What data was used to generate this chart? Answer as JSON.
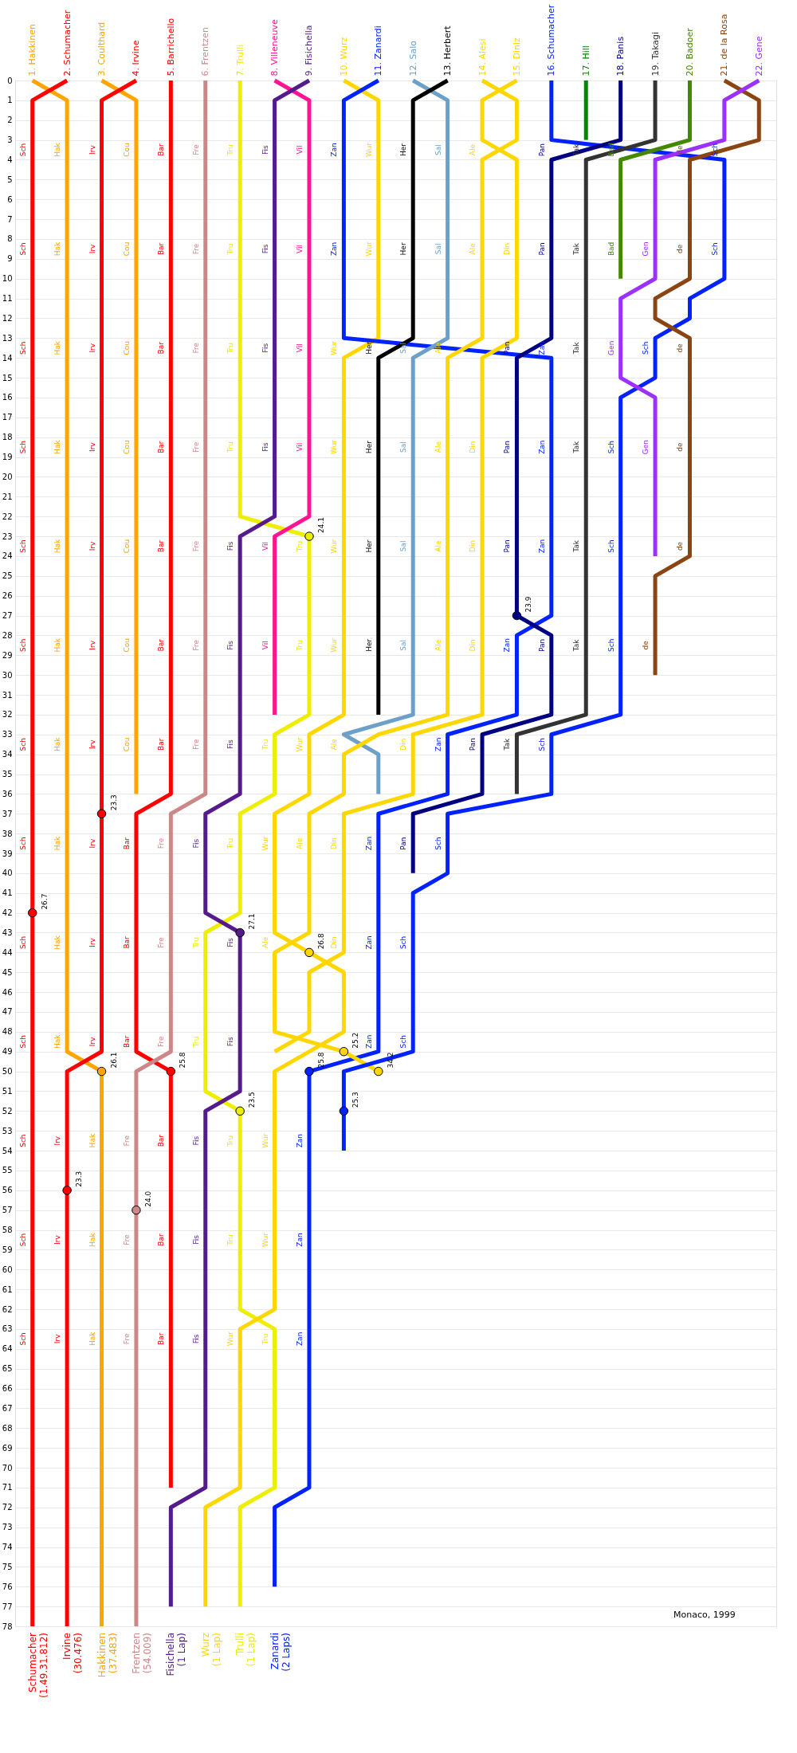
{
  "chart_data": {
    "type": "line",
    "xlim": [
      0.5,
      22.5
    ],
    "ylim": [
      78,
      0
    ],
    "grid": "y",
    "subtitle": "Monaco, 1999",
    "yticks": [
      0,
      1,
      2,
      3,
      4,
      5,
      6,
      7,
      8,
      9,
      10,
      11,
      12,
      13,
      14,
      15,
      16,
      17,
      18,
      19,
      20,
      21,
      22,
      23,
      24,
      25,
      26,
      27,
      28,
      29,
      30,
      31,
      32,
      33,
      34,
      35,
      36,
      37,
      38,
      39,
      40,
      41,
      42,
      43,
      44,
      45,
      46,
      47,
      48,
      49,
      50,
      51,
      52,
      53,
      54,
      55,
      56,
      57,
      58,
      59,
      60,
      61,
      62,
      63,
      64,
      65,
      66,
      67,
      68,
      69,
      70,
      71,
      72,
      73,
      74,
      75,
      76,
      77,
      78
    ],
    "xticks": [
      {
        "value": 1,
        "label": "1. Hakkinen"
      },
      {
        "value": 2,
        "label": "2. Schumacher"
      },
      {
        "value": 3,
        "label": "3. Coulthard"
      },
      {
        "value": 4,
        "label": "4. Irvine"
      },
      {
        "value": 5,
        "label": "5. Barrichello"
      },
      {
        "value": 6,
        "label": "6. Frentzen"
      },
      {
        "value": 7,
        "label": "7. Trulli"
      },
      {
        "value": 8,
        "label": "8. Villeneuve"
      },
      {
        "value": 9,
        "label": "9. Fisichella"
      },
      {
        "value": 10,
        "label": "10. Wurz"
      },
      {
        "value": 11,
        "label": "11. Zanardi"
      },
      {
        "value": 12,
        "label": "12. Salo"
      },
      {
        "value": 13,
        "label": "13. Herbert"
      },
      {
        "value": 14,
        "label": "14. Alesi"
      },
      {
        "value": 15,
        "label": "15. Diniz"
      },
      {
        "value": 16,
        "label": "16. Schumacher"
      },
      {
        "value": 17,
        "label": "17. Hill"
      },
      {
        "value": 18,
        "label": "18. Panis"
      },
      {
        "value": 19,
        "label": "19. Takagi"
      },
      {
        "value": 20,
        "label": "20. Badoer"
      },
      {
        "value": 21,
        "label": "21. de la Rosa"
      },
      {
        "value": 22,
        "label": "22. Gene"
      }
    ],
    "series": [
      {
        "color": "#ffa500",
        "x": [
          1,
          2,
          2,
          3,
          3
        ],
        "values": [
          0,
          1,
          49,
          50,
          78
        ]
      },
      {
        "color": "#ff0000",
        "x": [
          2,
          1,
          1
        ],
        "values": [
          0,
          1,
          78
        ]
      },
      {
        "color": "#ffa500",
        "x": [
          3,
          4,
          4
        ],
        "values": [
          0,
          1,
          36
        ]
      },
      {
        "color": "#ff0000",
        "x": [
          4,
          3,
          3,
          2,
          2
        ],
        "values": [
          0,
          1,
          49,
          50,
          78
        ]
      },
      {
        "color": "#ff0000",
        "x": [
          5,
          5,
          4,
          4,
          5,
          5
        ],
        "values": [
          0,
          36,
          37,
          49,
          50,
          71
        ]
      },
      {
        "color": "#cc8888",
        "x": [
          6,
          6,
          5,
          5,
          4,
          4
        ],
        "values": [
          0,
          36,
          37,
          49,
          50,
          78
        ]
      },
      {
        "color": "#eeee00",
        "x": [
          7,
          7,
          9,
          9,
          8,
          8,
          7,
          7,
          6,
          6,
          7,
          7,
          8,
          8,
          7,
          7
        ],
        "values": [
          0,
          22,
          23,
          32,
          33,
          36,
          37,
          42,
          43,
          51,
          52,
          62,
          63,
          71,
          72,
          77
        ]
      },
      {
        "color": "#ff1493",
        "x": [
          8,
          9,
          9,
          8,
          8
        ],
        "values": [
          0,
          1,
          22,
          23,
          32
        ]
      },
      {
        "color": "#551a8b",
        "x": [
          9,
          8,
          8,
          7,
          7,
          6,
          6,
          7,
          7,
          6,
          6,
          5,
          5
        ],
        "values": [
          0,
          1,
          22,
          23,
          36,
          37,
          42,
          43,
          51,
          52,
          71,
          72,
          77
        ]
      },
      {
        "color": "#ffd700",
        "x": [
          10,
          11,
          11,
          10,
          10,
          9,
          9,
          8,
          8,
          9,
          10,
          10,
          8,
          8,
          7,
          7,
          6,
          6
        ],
        "values": [
          0,
          1,
          13,
          14,
          32,
          33,
          36,
          37,
          43,
          44,
          45,
          48,
          50,
          62,
          63,
          71,
          72,
          77
        ]
      },
      {
        "color": "#0022ff",
        "x": [
          11,
          10,
          10,
          16,
          16,
          15,
          15,
          13,
          13,
          11,
          11,
          9,
          9,
          8,
          8
        ],
        "values": [
          0,
          1,
          13,
          14,
          27,
          28,
          32,
          33,
          36,
          37,
          49,
          50,
          71,
          72,
          76
        ]
      },
      {
        "color": "#6ca0c8",
        "x": [
          12,
          13,
          13,
          12,
          12,
          10,
          11,
          11
        ],
        "values": [
          0,
          1,
          13,
          14,
          32,
          33,
          34,
          36
        ]
      },
      {
        "color": "#000000",
        "x": [
          13,
          12,
          12,
          11,
          11
        ],
        "values": [
          0,
          1,
          13,
          14,
          32
        ]
      },
      {
        "color": "#ffd700",
        "x": [
          14,
          15,
          15,
          14,
          14,
          13,
          13,
          11,
          10,
          10,
          9,
          9,
          8,
          8,
          10,
          11
        ],
        "values": [
          0,
          1,
          3,
          4,
          13,
          14,
          32,
          33,
          34,
          36,
          37,
          43,
          44,
          48,
          49,
          50
        ]
      },
      {
        "color": "#ffd700",
        "x": [
          15,
          14,
          14,
          15,
          15,
          14,
          14,
          12,
          12,
          10,
          10,
          9,
          9,
          8
        ],
        "values": [
          0,
          1,
          3,
          4,
          13,
          14,
          32,
          33,
          36,
          37,
          44,
          45,
          48,
          49
        ]
      },
      {
        "color": "#0022ff",
        "x": [
          16,
          16,
          21,
          21,
          20,
          20,
          19,
          19,
          18,
          18,
          16,
          16,
          13,
          13,
          12,
          12,
          10,
          10
        ],
        "values": [
          0,
          3,
          4,
          10,
          11,
          12,
          13,
          15,
          16,
          32,
          33,
          36,
          37,
          40,
          41,
          49,
          50,
          54
        ]
      },
      {
        "color": "#008800",
        "x": [
          17,
          17
        ],
        "values": [
          0,
          3
        ]
      },
      {
        "color": "#000080",
        "x": [
          18,
          18,
          16,
          16,
          15,
          15,
          16,
          16,
          14,
          14,
          12,
          12
        ],
        "values": [
          0,
          3,
          4,
          13,
          14,
          27,
          28,
          32,
          33,
          36,
          37,
          40
        ]
      },
      {
        "color": "#333333",
        "x": [
          19,
          19,
          17,
          17,
          15,
          15
        ],
        "values": [
          0,
          3,
          4,
          32,
          33,
          36
        ]
      },
      {
        "color": "#448800",
        "x": [
          20,
          20,
          18,
          18
        ],
        "values": [
          0,
          3,
          4,
          10
        ]
      },
      {
        "color": "#8b4513",
        "x": [
          21,
          22,
          22,
          20,
          20,
          19,
          19,
          20,
          20,
          19,
          19
        ],
        "values": [
          0,
          1,
          3,
          4,
          10,
          11,
          12,
          13,
          24,
          25,
          30
        ]
      },
      {
        "color": "#9b30ff",
        "x": [
          22,
          21,
          21,
          19,
          19,
          18,
          18,
          19,
          19
        ],
        "values": [
          0,
          1,
          3,
          4,
          10,
          11,
          15,
          16,
          24
        ]
      },
      {
        "type": "scatter",
        "marker": "circle",
        "x": [
          1,
          3,
          2,
          3,
          5,
          4,
          9,
          7,
          7,
          9,
          10,
          11,
          9,
          10,
          15
        ],
        "values": [
          42,
          37,
          56,
          50,
          50,
          57,
          23,
          52,
          43,
          44,
          49,
          50,
          50,
          52,
          27
        ],
        "colors": [
          "#ff0000",
          "#ff0000",
          "#ff0000",
          "#ffa500",
          "#ff0000",
          "#cc8888",
          "#eeee00",
          "#eeee00",
          "#551a8b",
          "#ffd700",
          "#ffd700",
          "#ffd700",
          "#0022ff",
          "#0022ff",
          "#000080"
        ]
      }
    ],
    "annotations": [
      {
        "text": "26.7",
        "x": 1,
        "y": 42
      },
      {
        "text": "23.3",
        "x": 3,
        "y": 37
      },
      {
        "text": "23.3",
        "x": 2,
        "y": 56
      },
      {
        "text": "26.1",
        "x": 3,
        "y": 50
      },
      {
        "text": "25.8",
        "x": 5,
        "y": 50
      },
      {
        "text": "24.0",
        "x": 4,
        "y": 57
      },
      {
        "text": "24.1",
        "x": 9,
        "y": 23
      },
      {
        "text": "23.5",
        "x": 7,
        "y": 52
      },
      {
        "text": "27.1",
        "x": 7,
        "y": 43
      },
      {
        "text": "26.8",
        "x": 9,
        "y": 44
      },
      {
        "text": "25.2",
        "x": 10,
        "y": 49
      },
      {
        "text": "34.2",
        "x": 11,
        "y": 50
      },
      {
        "text": "25.8",
        "x": 9,
        "y": 50
      },
      {
        "text": "25.3",
        "x": 10,
        "y": 52
      },
      {
        "text": "23.9",
        "x": 15,
        "y": 27
      },
      {
        "text": "Sch",
        "x": 1,
        "y": 4
      },
      {
        "text": "Hak",
        "x": 2,
        "y": 4
      },
      {
        "text": "Irv",
        "x": 3,
        "y": 4
      },
      {
        "text": "Cou",
        "x": 4,
        "y": 4
      },
      {
        "text": "Bar",
        "x": 5,
        "y": 4
      },
      {
        "text": "Fre",
        "x": 6,
        "y": 4
      },
      {
        "text": "Tru",
        "x": 7,
        "y": 4
      },
      {
        "text": "Fis",
        "x": 8,
        "y": 4
      },
      {
        "text": "Vil",
        "x": 9,
        "y": 4
      },
      {
        "text": "Zan",
        "x": 10,
        "y": 4
      },
      {
        "text": "Wur",
        "x": 11,
        "y": 4
      },
      {
        "text": "Her",
        "x": 12,
        "y": 4
      },
      {
        "text": "Sal",
        "x": 13,
        "y": 4
      },
      {
        "text": "Ale",
        "x": 14,
        "y": 4
      },
      {
        "text": "Pan",
        "x": 16,
        "y": 4
      },
      {
        "text": "Tak",
        "x": 17,
        "y": 4
      },
      {
        "text": "Bad",
        "x": 18,
        "y": 4
      },
      {
        "text": "de",
        "x": 20,
        "y": 4
      },
      {
        "text": "Sch",
        "x": 21,
        "y": 4
      },
      {
        "text": "Sch",
        "x": 1,
        "y": 9
      },
      {
        "text": "Hak",
        "x": 2,
        "y": 9
      },
      {
        "text": "Irv",
        "x": 3,
        "y": 9
      },
      {
        "text": "Cou",
        "x": 4,
        "y": 9
      },
      {
        "text": "Bar",
        "x": 5,
        "y": 9
      },
      {
        "text": "Fre",
        "x": 6,
        "y": 9
      },
      {
        "text": "Tru",
        "x": 7,
        "y": 9
      },
      {
        "text": "Fis",
        "x": 8,
        "y": 9
      },
      {
        "text": "Vil",
        "x": 9,
        "y": 9
      },
      {
        "text": "Zan",
        "x": 10,
        "y": 9
      },
      {
        "text": "Wur",
        "x": 11,
        "y": 9
      },
      {
        "text": "Her",
        "x": 12,
        "y": 9
      },
      {
        "text": "Sal",
        "x": 13,
        "y": 9
      },
      {
        "text": "Ale",
        "x": 14,
        "y": 9
      },
      {
        "text": "Din",
        "x": 15,
        "y": 9
      },
      {
        "text": "Pan",
        "x": 16,
        "y": 9
      },
      {
        "text": "Tak",
        "x": 17,
        "y": 9
      },
      {
        "text": "Bad",
        "x": 18,
        "y": 9
      },
      {
        "text": "Gen",
        "x": 19,
        "y": 9
      },
      {
        "text": "de",
        "x": 20,
        "y": 9
      },
      {
        "text": "Sch",
        "x": 21,
        "y": 9
      },
      {
        "text": "Sch",
        "x": 1,
        "y": 14
      },
      {
        "text": "Hak",
        "x": 2,
        "y": 14
      },
      {
        "text": "Irv",
        "x": 3,
        "y": 14
      },
      {
        "text": "Cou",
        "x": 4,
        "y": 14
      },
      {
        "text": "Bar",
        "x": 5,
        "y": 14
      },
      {
        "text": "Fre",
        "x": 6,
        "y": 14
      },
      {
        "text": "Tru",
        "x": 7,
        "y": 14
      },
      {
        "text": "Fis",
        "x": 8,
        "y": 14
      },
      {
        "text": "Vil",
        "x": 9,
        "y": 14
      },
      {
        "text": "Wur",
        "x": 10,
        "y": 14
      },
      {
        "text": "Her",
        "x": 11,
        "y": 14
      },
      {
        "text": "Sal",
        "x": 12,
        "y": 14
      },
      {
        "text": "Ale",
        "x": 13,
        "y": 14
      },
      {
        "text": "Pan",
        "x": 15,
        "y": 14
      },
      {
        "text": "Zan",
        "x": 16,
        "y": 14
      },
      {
        "text": "Tak",
        "x": 17,
        "y": 14
      },
      {
        "text": "Gen",
        "x": 18,
        "y": 14
      },
      {
        "text": "Sch",
        "x": 19,
        "y": 14
      },
      {
        "text": "de",
        "x": 20,
        "y": 14
      },
      {
        "text": "Sch",
        "x": 1,
        "y": 19
      },
      {
        "text": "Hak",
        "x": 2,
        "y": 19
      },
      {
        "text": "Irv",
        "x": 3,
        "y": 19
      },
      {
        "text": "Cou",
        "x": 4,
        "y": 19
      },
      {
        "text": "Bar",
        "x": 5,
        "y": 19
      },
      {
        "text": "Fre",
        "x": 6,
        "y": 19
      },
      {
        "text": "Tru",
        "x": 7,
        "y": 19
      },
      {
        "text": "Fis",
        "x": 8,
        "y": 19
      },
      {
        "text": "Vil",
        "x": 9,
        "y": 19
      },
      {
        "text": "Wur",
        "x": 10,
        "y": 19
      },
      {
        "text": "Her",
        "x": 11,
        "y": 19
      },
      {
        "text": "Sal",
        "x": 12,
        "y": 19
      },
      {
        "text": "Ale",
        "x": 13,
        "y": 19
      },
      {
        "text": "Din",
        "x": 14,
        "y": 19
      },
      {
        "text": "Pan",
        "x": 15,
        "y": 19
      },
      {
        "text": "Zan",
        "x": 16,
        "y": 19
      },
      {
        "text": "Tak",
        "x": 17,
        "y": 19
      },
      {
        "text": "Sch",
        "x": 18,
        "y": 19
      },
      {
        "text": "Gen",
        "x": 19,
        "y": 19
      },
      {
        "text": "de",
        "x": 20,
        "y": 19
      },
      {
        "text": "Sch",
        "x": 1,
        "y": 24
      },
      {
        "text": "Hak",
        "x": 2,
        "y": 24
      },
      {
        "text": "Irv",
        "x": 3,
        "y": 24
      },
      {
        "text": "Cou",
        "x": 4,
        "y": 24
      },
      {
        "text": "Bar",
        "x": 5,
        "y": 24
      },
      {
        "text": "Fre",
        "x": 6,
        "y": 24
      },
      {
        "text": "Fis",
        "x": 7,
        "y": 24
      },
      {
        "text": "Vil",
        "x": 8,
        "y": 24
      },
      {
        "text": "Tru",
        "x": 9,
        "y": 24
      },
      {
        "text": "Wur",
        "x": 10,
        "y": 24
      },
      {
        "text": "Her",
        "x": 11,
        "y": 24
      },
      {
        "text": "Sal",
        "x": 12,
        "y": 24
      },
      {
        "text": "Ale",
        "x": 13,
        "y": 24
      },
      {
        "text": "Din",
        "x": 14,
        "y": 24
      },
      {
        "text": "Pan",
        "x": 15,
        "y": 24
      },
      {
        "text": "Zan",
        "x": 16,
        "y": 24
      },
      {
        "text": "Tak",
        "x": 17,
        "y": 24
      },
      {
        "text": "Sch",
        "x": 18,
        "y": 24
      },
      {
        "text": "de",
        "x": 20,
        "y": 24
      },
      {
        "text": "Sch",
        "x": 1,
        "y": 29
      },
      {
        "text": "Hak",
        "x": 2,
        "y": 29
      },
      {
        "text": "Irv",
        "x": 3,
        "y": 29
      },
      {
        "text": "Cou",
        "x": 4,
        "y": 29
      },
      {
        "text": "Bar",
        "x": 5,
        "y": 29
      },
      {
        "text": "Fre",
        "x": 6,
        "y": 29
      },
      {
        "text": "Fis",
        "x": 7,
        "y": 29
      },
      {
        "text": "Vil",
        "x": 8,
        "y": 29
      },
      {
        "text": "Tru",
        "x": 9,
        "y": 29
      },
      {
        "text": "Wur",
        "x": 10,
        "y": 29
      },
      {
        "text": "Her",
        "x": 11,
        "y": 29
      },
      {
        "text": "Sal",
        "x": 12,
        "y": 29
      },
      {
        "text": "Ale",
        "x": 13,
        "y": 29
      },
      {
        "text": "Din",
        "x": 14,
        "y": 29
      },
      {
        "text": "Zan",
        "x": 15,
        "y": 29
      },
      {
        "text": "Pan",
        "x": 16,
        "y": 29
      },
      {
        "text": "Tak",
        "x": 17,
        "y": 29
      },
      {
        "text": "Sch",
        "x": 18,
        "y": 29
      },
      {
        "text": "de",
        "x": 19,
        "y": 29
      },
      {
        "text": "Sch",
        "x": 1,
        "y": 34
      },
      {
        "text": "Hak",
        "x": 2,
        "y": 34
      },
      {
        "text": "Irv",
        "x": 3,
        "y": 34
      },
      {
        "text": "Cou",
        "x": 4,
        "y": 34
      },
      {
        "text": "Bar",
        "x": 5,
        "y": 34
      },
      {
        "text": "Fre",
        "x": 6,
        "y": 34
      },
      {
        "text": "Fis",
        "x": 7,
        "y": 34
      },
      {
        "text": "Tru",
        "x": 8,
        "y": 34
      },
      {
        "text": "Wur",
        "x": 9,
        "y": 34
      },
      {
        "text": "Ale",
        "x": 10,
        "y": 34
      },
      {
        "text": "Din",
        "x": 12,
        "y": 34
      },
      {
        "text": "Zan",
        "x": 13,
        "y": 34
      },
      {
        "text": "Pan",
        "x": 14,
        "y": 34
      },
      {
        "text": "Tak",
        "x": 15,
        "y": 34
      },
      {
        "text": "Sch",
        "x": 16,
        "y": 34
      },
      {
        "text": "Sch",
        "x": 1,
        "y": 39
      },
      {
        "text": "Hak",
        "x": 2,
        "y": 39
      },
      {
        "text": "Irv",
        "x": 3,
        "y": 39
      },
      {
        "text": "Bar",
        "x": 4,
        "y": 39
      },
      {
        "text": "Fre",
        "x": 5,
        "y": 39
      },
      {
        "text": "Fis",
        "x": 6,
        "y": 39
      },
      {
        "text": "Tru",
        "x": 7,
        "y": 39
      },
      {
        "text": "Wur",
        "x": 8,
        "y": 39
      },
      {
        "text": "Ale",
        "x": 9,
        "y": 39
      },
      {
        "text": "Din",
        "x": 10,
        "y": 39
      },
      {
        "text": "Zan",
        "x": 11,
        "y": 39
      },
      {
        "text": "Pan",
        "x": 12,
        "y": 39
      },
      {
        "text": "Sch",
        "x": 13,
        "y": 39
      },
      {
        "text": "Sch",
        "x": 1,
        "y": 44
      },
      {
        "text": "Hak",
        "x": 2,
        "y": 44
      },
      {
        "text": "Irv",
        "x": 3,
        "y": 44
      },
      {
        "text": "Bar",
        "x": 4,
        "y": 44
      },
      {
        "text": "Fre",
        "x": 5,
        "y": 44
      },
      {
        "text": "Tru",
        "x": 6,
        "y": 44
      },
      {
        "text": "Fis",
        "x": 7,
        "y": 44
      },
      {
        "text": "Ale",
        "x": 8,
        "y": 44
      },
      {
        "text": "Din",
        "x": 10,
        "y": 44
      },
      {
        "text": "Zan",
        "x": 11,
        "y": 44
      },
      {
        "text": "Sch",
        "x": 12,
        "y": 44
      },
      {
        "text": "Sch",
        "x": 1,
        "y": 49
      },
      {
        "text": "Hak",
        "x": 2,
        "y": 49
      },
      {
        "text": "Irv",
        "x": 3,
        "y": 49
      },
      {
        "text": "Bar",
        "x": 4,
        "y": 49
      },
      {
        "text": "Fre",
        "x": 5,
        "y": 49
      },
      {
        "text": "Tru",
        "x": 6,
        "y": 49
      },
      {
        "text": "Fis",
        "x": 7,
        "y": 49
      },
      {
        "text": "Zan",
        "x": 11,
        "y": 49
      },
      {
        "text": "Sch",
        "x": 12,
        "y": 49
      },
      {
        "text": "Sch",
        "x": 1,
        "y": 54
      },
      {
        "text": "Irv",
        "x": 2,
        "y": 54
      },
      {
        "text": "Hak",
        "x": 3,
        "y": 54
      },
      {
        "text": "Fre",
        "x": 4,
        "y": 54
      },
      {
        "text": "Bar",
        "x": 5,
        "y": 54
      },
      {
        "text": "Fis",
        "x": 6,
        "y": 54
      },
      {
        "text": "Tru",
        "x": 7,
        "y": 54
      },
      {
        "text": "Wur",
        "x": 8,
        "y": 54
      },
      {
        "text": "Zan",
        "x": 9,
        "y": 54
      },
      {
        "text": "Sch",
        "x": 1,
        "y": 59
      },
      {
        "text": "Irv",
        "x": 2,
        "y": 59
      },
      {
        "text": "Hak",
        "x": 3,
        "y": 59
      },
      {
        "text": "Fre",
        "x": 4,
        "y": 59
      },
      {
        "text": "Bar",
        "x": 5,
        "y": 59
      },
      {
        "text": "Fis",
        "x": 6,
        "y": 59
      },
      {
        "text": "Tru",
        "x": 7,
        "y": 59
      },
      {
        "text": "Wur",
        "x": 8,
        "y": 59
      },
      {
        "text": "Zan",
        "x": 9,
        "y": 59
      },
      {
        "text": "Sch",
        "x": 1,
        "y": 64
      },
      {
        "text": "Irv",
        "x": 2,
        "y": 64
      },
      {
        "text": "Hak",
        "x": 3,
        "y": 64
      },
      {
        "text": "Fre",
        "x": 4,
        "y": 64
      },
      {
        "text": "Bar",
        "x": 5,
        "y": 64
      },
      {
        "text": "Fis",
        "x": 6,
        "y": 64
      },
      {
        "text": "Wur",
        "x": 7,
        "y": 64
      },
      {
        "text": "Tru",
        "x": 8,
        "y": 64
      },
      {
        "text": "Zan",
        "x": 9,
        "y": 64
      },
      "Schumacher\n(1.49.31.812)",
      "Irvine\n(30.476)",
      "Hakkinen\n(37.483)",
      "Frentzen\n(54.009)",
      "Fisichella\n(1 Lap)",
      "Wurz\n(1 Lap)",
      "Trulli\n(1 Lap)",
      "Zanardi\n(2 Laps)"
    ]
  }
}
